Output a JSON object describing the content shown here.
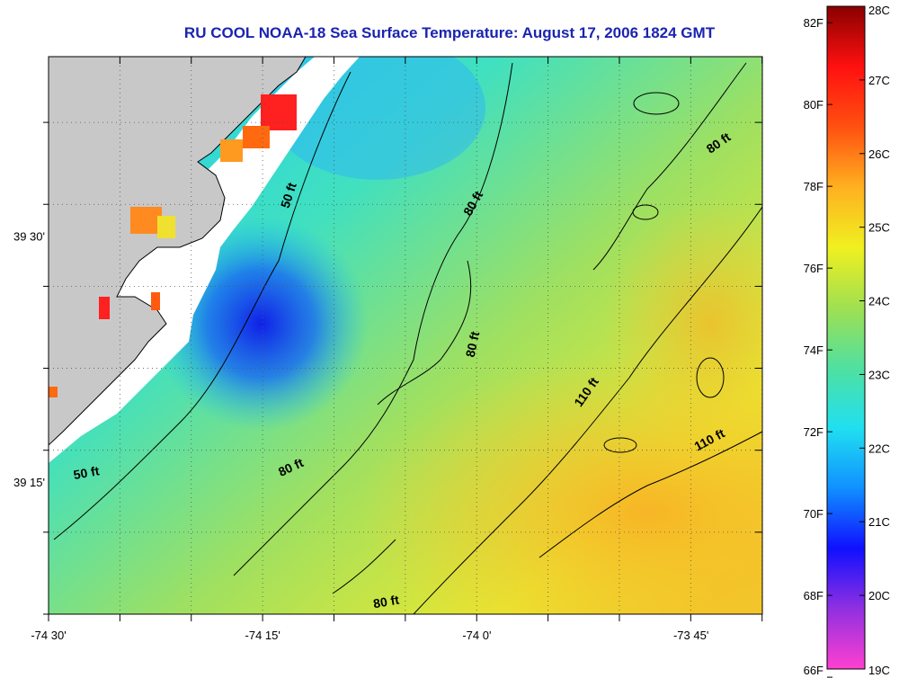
{
  "title": "RU COOL  NOAA-18  Sea Surface Temperature:  August 17, 2006 1824 GMT",
  "map": {
    "lon_range": [
      -74.5,
      -73.6667
    ],
    "lat_range": [
      39.1167,
      39.6833
    ],
    "x_ticks": [
      {
        "lon": -74.5,
        "label": "-74 30'"
      },
      {
        "lon": -74.25,
        "label": "-74 15'"
      },
      {
        "lon": -74.0,
        "label": "-74 0'"
      },
      {
        "lon": -73.75,
        "label": "-73 45'"
      }
    ],
    "y_ticks": [
      {
        "lat": 39.5,
        "label": "39 30'"
      },
      {
        "lat": 39.25,
        "label": "39 15'"
      }
    ],
    "minor_tick_step_deg": 0.0833,
    "colors": {
      "land": "#c8c8c8",
      "cloud_mask": "#ffffff",
      "frame": "#000000",
      "title": "#1a24b0"
    },
    "contour_labels": [
      {
        "text": "50 ft",
        "lon": -74.215,
        "lat": 39.541,
        "angle": -72
      },
      {
        "text": "80 ft",
        "lon": -74.0,
        "lat": 39.532,
        "angle": -60
      },
      {
        "text": "80 ft",
        "lon": -73.715,
        "lat": 39.592,
        "angle": -35
      },
      {
        "text": "80 ft",
        "lon": -74.0,
        "lat": 39.39,
        "angle": -78
      },
      {
        "text": "110 ft",
        "lon": -73.868,
        "lat": 39.34,
        "angle": -55
      },
      {
        "text": "110 ft",
        "lon": -73.726,
        "lat": 39.29,
        "angle": -28
      },
      {
        "text": "80 ft",
        "lon": -74.215,
        "lat": 39.262,
        "angle": -25
      },
      {
        "text": "50 ft",
        "lon": -74.455,
        "lat": 39.256,
        "angle": -10
      },
      {
        "text": "80 ft",
        "lon": -74.105,
        "lat": 39.125,
        "angle": -10
      }
    ]
  },
  "colorbar": {
    "min_c": 19,
    "max_c": 28,
    "celsius_labels": [
      "28C",
      "27C",
      "26C",
      "25C",
      "24C",
      "23C",
      "22C",
      "21C",
      "20C",
      "19C"
    ],
    "fahrenheit_labels": [
      "82F",
      "80F",
      "78F",
      "76F",
      "74F",
      "72F",
      "70F",
      "68F",
      "66F"
    ],
    "fahrenheit_values": [
      82,
      80,
      78,
      76,
      74,
      72,
      70,
      68,
      66
    ],
    "stops": [
      "#ff40d0",
      "#9030e0",
      "#1010ff",
      "#1090ff",
      "#20e0f0",
      "#50e0a0",
      "#a0e050",
      "#f0f020",
      "#ffb020",
      "#ff5010",
      "#ff1010",
      "#8a0000"
    ]
  }
}
